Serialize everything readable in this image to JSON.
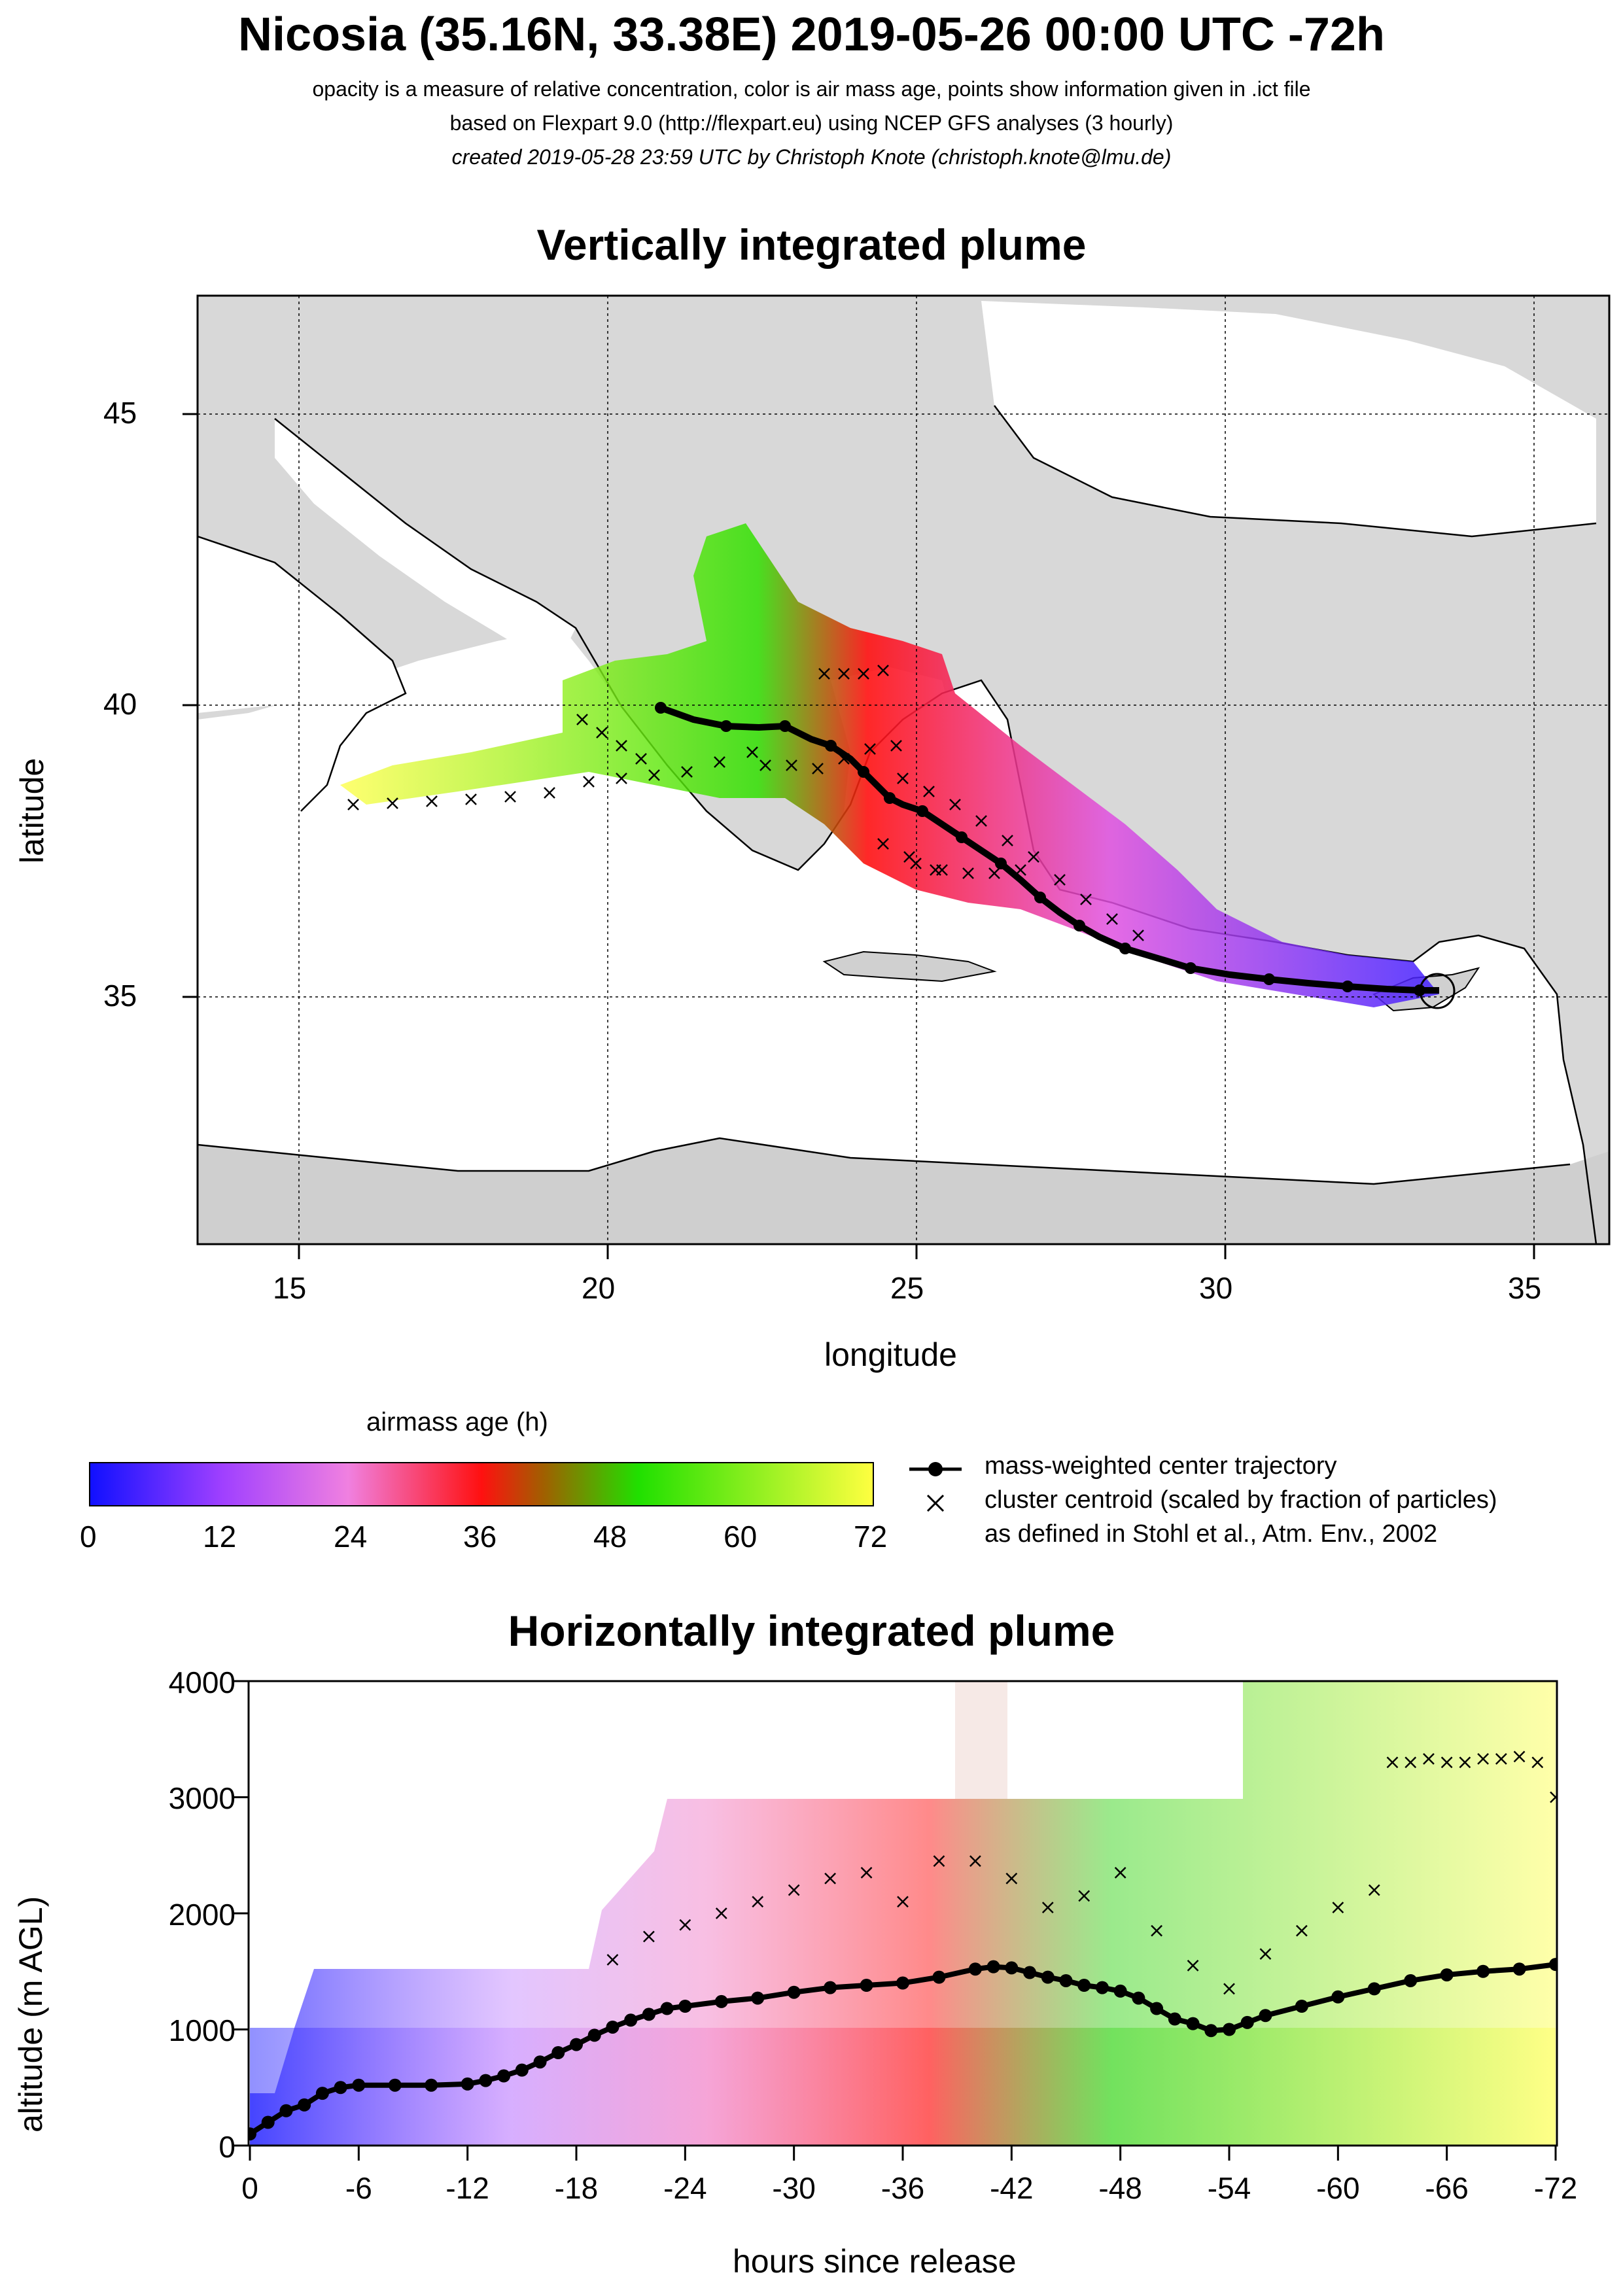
{
  "header": {
    "title": "Nicosia (35.16N, 33.38E) 2019-05-26 00:00 UTC -72h",
    "line1": "opacity is a measure of relative concentration, color is air mass age, points show information given in .ict file",
    "line2": "based on Flexpart 9.0 (http://flexpart.eu) using NCEP GFS analyses (3 hourly)",
    "line3": "created 2019-05-28 23:59 UTC by Christoph Knote (christoph.knote@lmu.de)"
  },
  "map_panel": {
    "title": "Vertically integrated plume",
    "xlabel": "longitude",
    "ylabel": "latitude",
    "x_ticks": [
      "15",
      "20",
      "25",
      "30",
      "35"
    ],
    "y_ticks": [
      "45",
      "40",
      "35"
    ],
    "xlim": [
      13.4,
      36.2
    ],
    "ylim": [
      30.8,
      47.0
    ],
    "release_site": {
      "lon": 33.38,
      "lat": 35.16
    },
    "background_color": "#e6e6e6",
    "sea_color": "#ffffff"
  },
  "colorbar": {
    "title": "airmass age (h)",
    "ticks": [
      "0",
      "12",
      "24",
      "36",
      "48",
      "60",
      "72"
    ],
    "range": [
      0,
      72
    ],
    "colors": [
      "#1010ff",
      "#a040ff",
      "#f080e0",
      "#ff1010",
      "#20e000",
      "#ffff40"
    ]
  },
  "legend": {
    "center_trajectory": "mass-weighted center trajectory",
    "cluster_line1": "cluster centroid (scaled by fraction of particles)",
    "cluster_line2": "as defined in Stohl et al., Atm. Env., 2002"
  },
  "profile_panel": {
    "title": "Horizontally integrated plume",
    "xlabel": "hours since release",
    "ylabel": "altitude (m AGL)",
    "x_ticks": [
      "0",
      "-6",
      "-12",
      "-18",
      "-24",
      "-30",
      "-36",
      "-42",
      "-48",
      "-54",
      "-60",
      "-66",
      "-72"
    ],
    "y_ticks": [
      "0",
      "1000",
      "2000",
      "3000",
      "4000"
    ]
  },
  "chart_data": {
    "type": "line",
    "xlabel": "hours since release",
    "ylabel": "altitude (m AGL)",
    "xlim": [
      0,
      -72
    ],
    "ylim": [
      0,
      4000
    ],
    "series": [
      {
        "name": "mass-weighted center trajectory",
        "x": [
          0,
          -1,
          -2,
          -3,
          -4,
          -5,
          -6,
          -8,
          -10,
          -12,
          -13,
          -14,
          -15,
          -16,
          -17,
          -18,
          -19,
          -20,
          -21,
          -22,
          -23,
          -24,
          -26,
          -28,
          -30,
          -32,
          -34,
          -36,
          -38,
          -40,
          -41,
          -42,
          -43,
          -44,
          -45,
          -46,
          -47,
          -48,
          -49,
          -50,
          -51,
          -52,
          -53,
          -54,
          -55,
          -56,
          -58,
          -60,
          -62,
          -64,
          -66,
          -68,
          -70,
          -72
        ],
        "y": [
          100,
          200,
          300,
          350,
          450,
          500,
          520,
          520,
          520,
          530,
          560,
          600,
          650,
          720,
          800,
          870,
          950,
          1020,
          1080,
          1130,
          1180,
          1200,
          1240,
          1270,
          1320,
          1360,
          1380,
          1400,
          1450,
          1520,
          1540,
          1530,
          1490,
          1450,
          1420,
          1380,
          1360,
          1330,
          1270,
          1180,
          1090,
          1050,
          990,
          1000,
          1060,
          1120,
          1200,
          1280,
          1350,
          1420,
          1470,
          1500,
          1520,
          1560
        ]
      },
      {
        "name": "cluster centroid (upper)",
        "x": [
          -20,
          -22,
          -24,
          -26,
          -28,
          -30,
          -32,
          -34,
          -36,
          -38,
          -40,
          -42,
          -44,
          -46,
          -48,
          -50,
          -52,
          -54,
          -56,
          -58,
          -60,
          -62
        ],
        "y": [
          1600,
          1800,
          1900,
          2000,
          2100,
          2200,
          2300,
          2350,
          2100,
          2450,
          2450,
          2300,
          2050,
          2150,
          2350,
          1850,
          1550,
          1350,
          1650,
          1850,
          2050,
          2200
        ]
      },
      {
        "name": "cluster centroid (top)",
        "x": [
          -63,
          -64,
          -65,
          -66,
          -67,
          -68,
          -69,
          -70,
          -71,
          -72
        ],
        "y": [
          3300,
          3300,
          3330,
          3300,
          3300,
          3330,
          3330,
          3350,
          3300,
          3000
        ]
      }
    ]
  }
}
